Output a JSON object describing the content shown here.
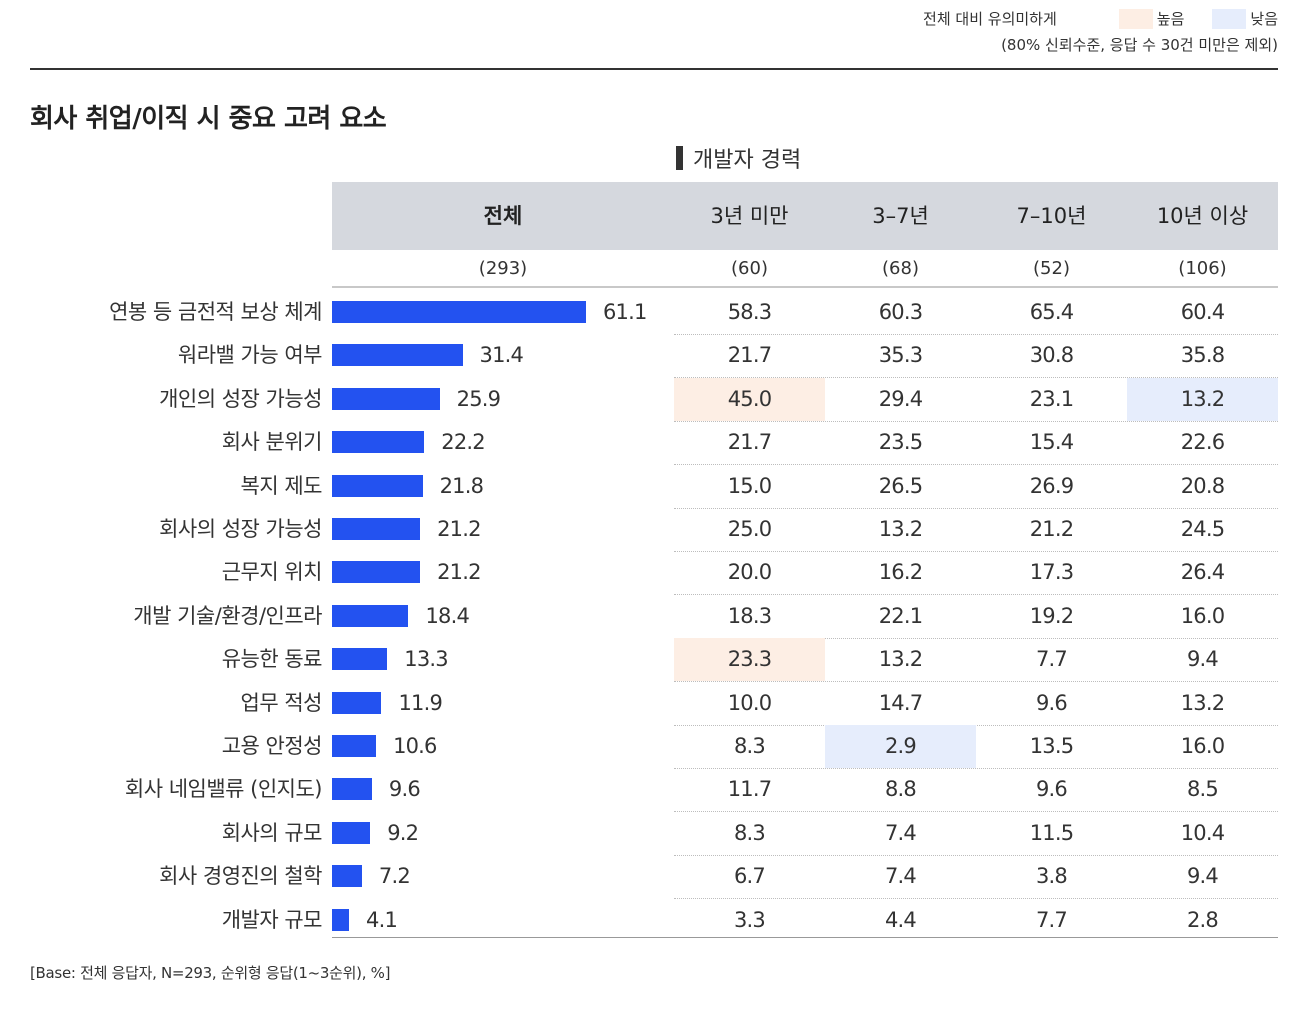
{
  "legend": {
    "label": "전체 대비 유의미하게",
    "high_label": "높음",
    "low_label": "낮음",
    "note": "(80% 신뢰수준, 응답 수 30건 미만은 제외)",
    "high_color": "#fdeee4",
    "low_color": "#e6edfc"
  },
  "title": "회사 취업/이직 시 중요 고려 요소",
  "group_title": "개발자 경력",
  "columns": [
    "전체",
    "3년 미만",
    "3–7년",
    "7–10년",
    "10년 이상"
  ],
  "n_values": [
    "(293)",
    "(60)",
    "(68)",
    "(52)",
    "(106)"
  ],
  "footnote": "[Base: 전체 응답자, N=293, 순위형 응답(1~3순위), %]",
  "chart_data": {
    "type": "bar",
    "bar_color": "#2352f0",
    "xlim": [
      0,
      100
    ],
    "categories": [
      "연봉 등 금전적 보상 체계",
      "워라밸 가능 여부",
      "개인의 성장 가능성",
      "회사 분위기",
      "복지 제도",
      "회사의 성장 가능성",
      "근무지 위치",
      "개발 기술/환경/인프라",
      "유능한 동료",
      "업무 적성",
      "고용 안정성",
      "회사 네임밸류 (인지도)",
      "회사의 규모",
      "회사 경영진의 철학",
      "개발자 규모"
    ],
    "series": [
      {
        "name": "전체",
        "values": [
          61.1,
          31.4,
          25.9,
          22.2,
          21.8,
          21.2,
          21.2,
          18.4,
          13.3,
          11.9,
          10.6,
          9.6,
          9.2,
          7.2,
          4.1
        ]
      }
    ],
    "value_labels": [
      "61.1",
      "31.4",
      "25.9",
      "22.2",
      "21.8",
      "21.2",
      "21.2",
      "18.4",
      "13.3",
      "11.9",
      "10.6",
      "9.6",
      "9.2",
      "7.2",
      "4.1"
    ],
    "table": [
      [
        "58.3",
        "60.3",
        "65.4",
        "60.4"
      ],
      [
        "21.7",
        "35.3",
        "30.8",
        "35.8"
      ],
      [
        "45.0",
        "29.4",
        "23.1",
        "13.2"
      ],
      [
        "21.7",
        "23.5",
        "15.4",
        "22.6"
      ],
      [
        "15.0",
        "26.5",
        "26.9",
        "20.8"
      ],
      [
        "25.0",
        "13.2",
        "21.2",
        "24.5"
      ],
      [
        "20.0",
        "16.2",
        "17.3",
        "26.4"
      ],
      [
        "18.3",
        "22.1",
        "19.2",
        "16.0"
      ],
      [
        "23.3",
        "13.2",
        "7.7",
        "9.4"
      ],
      [
        "10.0",
        "14.7",
        "9.6",
        "13.2"
      ],
      [
        "8.3",
        "2.9",
        "13.5",
        "16.0"
      ],
      [
        "11.7",
        "8.8",
        "9.6",
        "8.5"
      ],
      [
        "8.3",
        "7.4",
        "11.5",
        "10.4"
      ],
      [
        "6.7",
        "7.4",
        "3.8",
        "9.4"
      ],
      [
        "3.3",
        "4.4",
        "7.7",
        "2.8"
      ]
    ],
    "highlights": [
      {
        "row": 2,
        "col": 0,
        "type": "high"
      },
      {
        "row": 2,
        "col": 3,
        "type": "low"
      },
      {
        "row": 8,
        "col": 0,
        "type": "high"
      },
      {
        "row": 10,
        "col": 1,
        "type": "low"
      }
    ]
  }
}
